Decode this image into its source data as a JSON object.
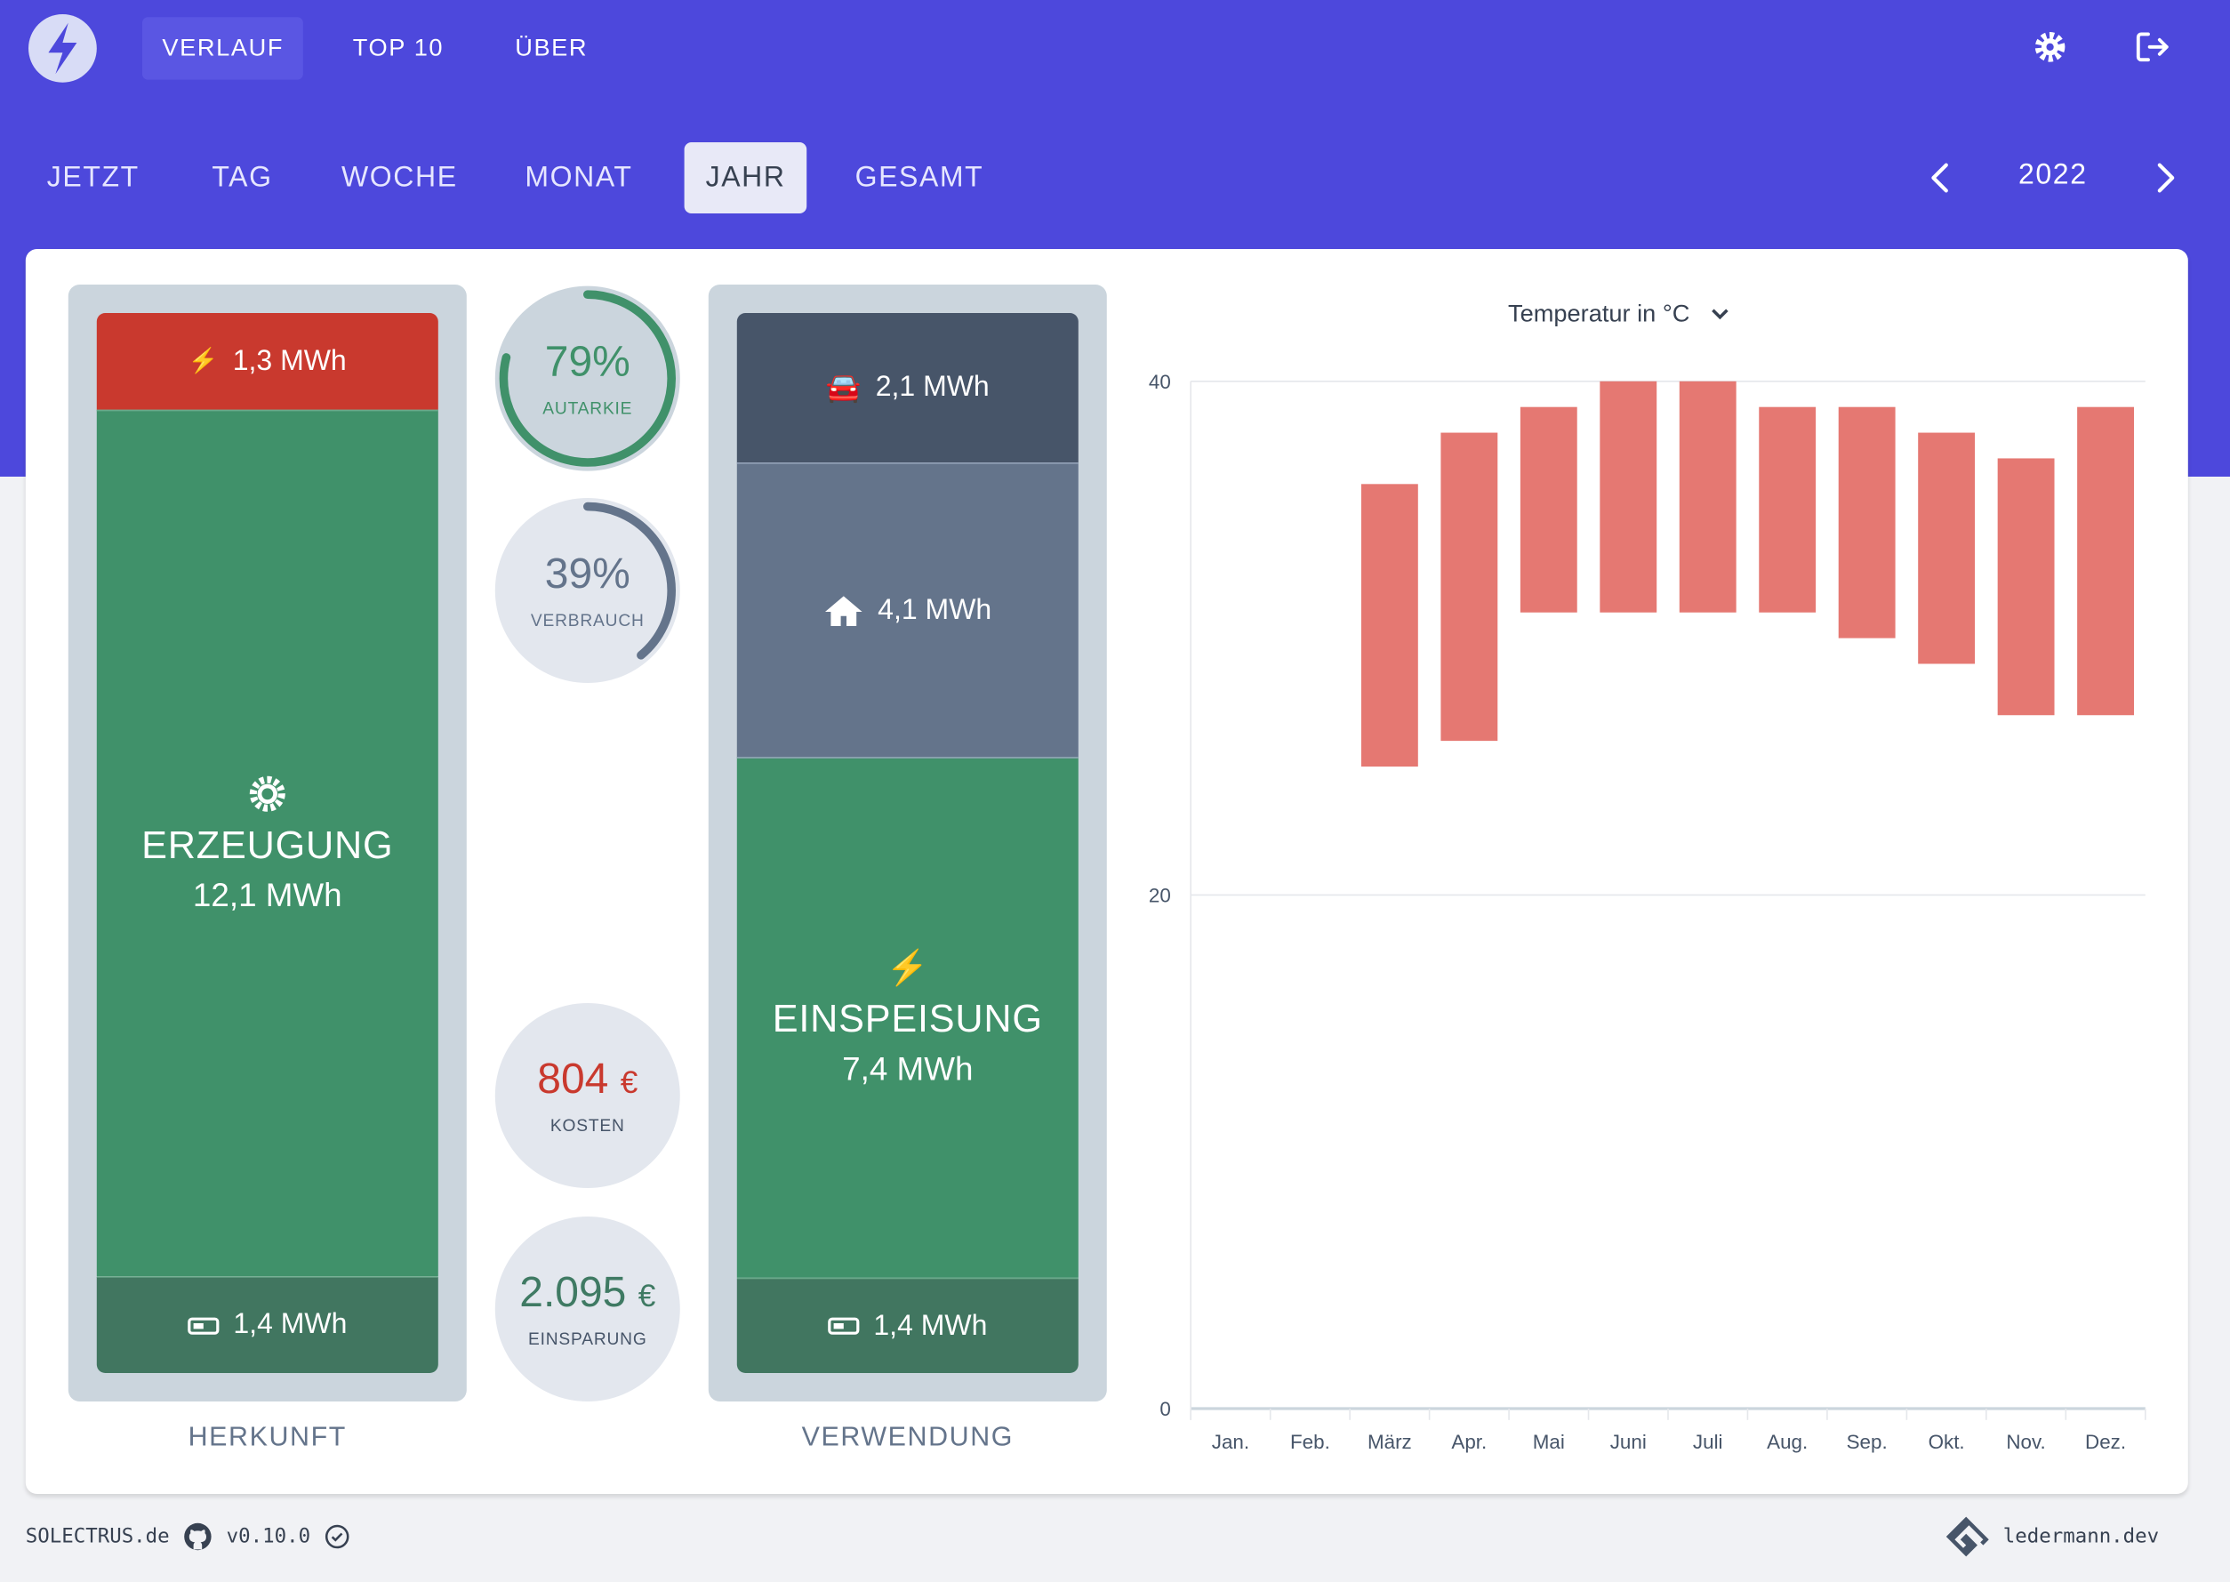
{
  "header": {
    "nav": [
      {
        "label": "VERLAUF",
        "active": true
      },
      {
        "label": "TOP 10"
      },
      {
        "label": "ÜBER"
      }
    ],
    "icons": {
      "logo": "lightning-logo",
      "settings": "gear-icon",
      "logout": "logout-icon"
    }
  },
  "tabs": [
    {
      "label": "JETZT"
    },
    {
      "label": "TAG"
    },
    {
      "label": "WOCHE"
    },
    {
      "label": "MONAT"
    },
    {
      "label": "JAHR",
      "active": true
    },
    {
      "label": "GESAMT"
    }
  ],
  "period": {
    "label": "2022"
  },
  "herkunft": {
    "label": "HERKUNFT",
    "grid": "1,3 MWh",
    "generation_title": "ERZEUGUNG",
    "generation": "12,1 MWh",
    "battery": "1,4 MWh"
  },
  "verwendung": {
    "label": "VERWENDUNG",
    "car": "2,1 MWh",
    "house": "4,1 MWh",
    "feed_title": "EINSPEISUNG",
    "feed": "7,4 MWh",
    "battery": "1,4 MWh"
  },
  "stats": {
    "autarkie": {
      "value": "79%",
      "label": "AUTARKIE",
      "percent": 79
    },
    "verbrauch": {
      "value": "39%",
      "label": "VERBRAUCH",
      "percent": 39
    },
    "kosten": {
      "value": "804",
      "unit": "€",
      "label": "KOSTEN"
    },
    "einsparung": {
      "value": "2.095",
      "unit": "€",
      "label": "EINSPARUNG"
    }
  },
  "colors": {
    "brand": "#4d48dc",
    "green": "#40916a",
    "red": "#c9392e",
    "bar": "#e57872"
  },
  "chart_data": {
    "type": "bar",
    "title": "Temperatur in °C",
    "categories": [
      "Jan.",
      "Feb.",
      "März",
      "Apr.",
      "Mai",
      "Juni",
      "Juli",
      "Aug.",
      "Sep.",
      "Okt.",
      "Nov.",
      "Dez."
    ],
    "series": [
      {
        "name": "Temperatur",
        "min": [
          null,
          null,
          25,
          26,
          31,
          31,
          31,
          31,
          30,
          29,
          27,
          27
        ],
        "max": [
          null,
          null,
          36,
          38,
          39,
          40,
          40,
          39,
          39,
          38,
          37,
          39
        ]
      }
    ],
    "yticks": [
      "0",
      "20",
      "40"
    ],
    "ylim": [
      0,
      40
    ],
    "grid": true
  },
  "footer": {
    "brand": "SOLECTRUS.de",
    "version": "v0.10.0",
    "author": "ledermann.dev"
  }
}
